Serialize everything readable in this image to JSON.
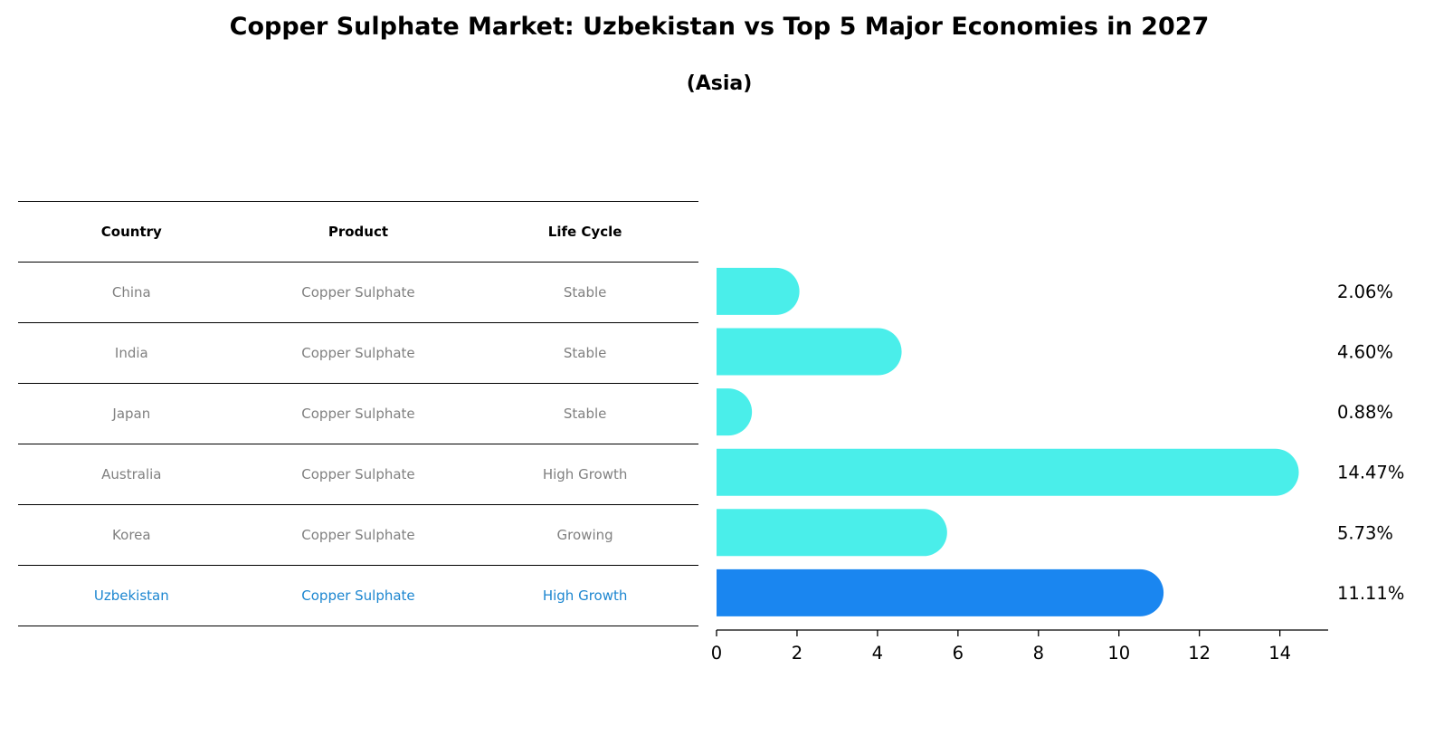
{
  "title": "Copper Sulphate Market: Uzbekistan vs Top 5 Major Economies in 2027",
  "subtitle": "(Asia)",
  "table": {
    "headers": [
      "Country",
      "Product",
      "Life Cycle"
    ],
    "rows": [
      {
        "country": "China",
        "product": "Copper Sulphate",
        "life_cycle": "Stable"
      },
      {
        "country": "India",
        "product": "Copper Sulphate",
        "life_cycle": "Stable"
      },
      {
        "country": "Japan",
        "product": "Copper Sulphate",
        "life_cycle": "Stable"
      },
      {
        "country": "Australia",
        "product": "Copper Sulphate",
        "life_cycle": "High Growth"
      },
      {
        "country": "Korea",
        "product": "Copper Sulphate",
        "life_cycle": "Growing"
      },
      {
        "country": "Uzbekistan",
        "product": "Copper Sulphate",
        "life_cycle": "High Growth"
      }
    ],
    "highlight_row": "Uzbekistan"
  },
  "colors": {
    "bar": "#4aeeea",
    "highlight_bar": "#1a86f0",
    "highlight_text": "#1c86d0",
    "muted_text": "#808080"
  },
  "chart_data": {
    "type": "bar",
    "orientation": "horizontal",
    "categories": [
      "China",
      "India",
      "Japan",
      "Australia",
      "Korea",
      "Uzbekistan"
    ],
    "values": [
      2.06,
      4.6,
      0.88,
      14.47,
      5.73,
      11.11
    ],
    "value_labels": [
      "2.06%",
      "4.60%",
      "0.88%",
      "14.47%",
      "5.73%",
      "11.11%"
    ],
    "xlim": [
      0,
      15.2
    ],
    "xticks": [
      0,
      2,
      4,
      6,
      8,
      10,
      12,
      14
    ],
    "highlight": "Uzbekistan",
    "grid": false
  }
}
